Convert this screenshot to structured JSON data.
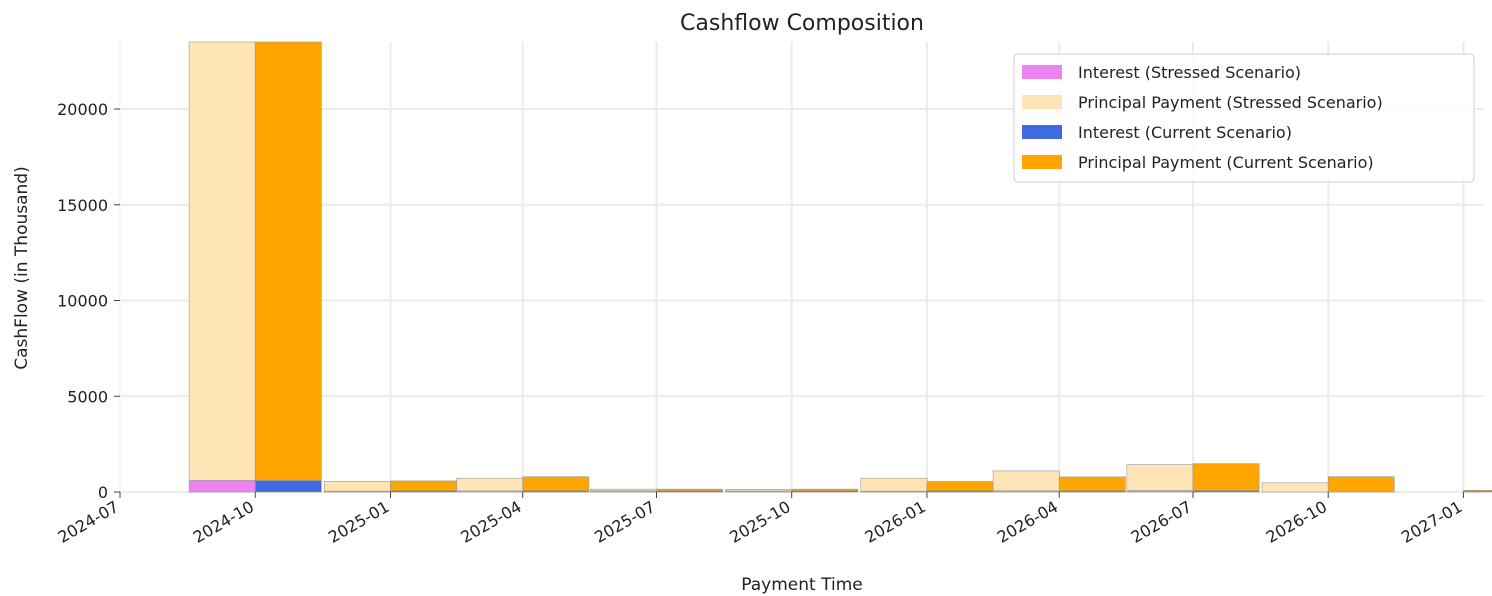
{
  "chart_data": {
    "type": "bar",
    "title": "Cashflow Composition",
    "xlabel": "Payment Time",
    "ylabel": "CashFlow (in Thousand)",
    "ylim": [
      0,
      23500
    ],
    "yticks": [
      0,
      5000,
      10000,
      15000,
      20000
    ],
    "xlim": [
      "2024-07-01",
      "2027-01-15"
    ],
    "xticks": [
      "2024-07",
      "2024-10",
      "2025-01",
      "2025-04",
      "2025-07",
      "2025-10",
      "2026-01",
      "2026-04",
      "2026-07",
      "2026-10",
      "2027-01"
    ],
    "grid": true,
    "legend_position": "top-right",
    "colors": {
      "interest_stressed": "#ee82ee",
      "principal_stressed": "#ffe4b5",
      "interest_current": "#4169e1",
      "principal_current": "#ffa500"
    },
    "periods": [
      "2024-10",
      "2025-01",
      "2025-04",
      "2025-07",
      "2025-10",
      "2026-01",
      "2026-04",
      "2026-07",
      "2026-10",
      "2027-01"
    ],
    "series": [
      {
        "name": "Interest (Stressed Scenario)",
        "scenario": "stressed",
        "component": "interest",
        "values": [
          600,
          40,
          50,
          60,
          50,
          40,
          60,
          70,
          0,
          0
        ]
      },
      {
        "name": "Principal Payment (Stressed Scenario)",
        "scenario": "stressed",
        "component": "principal",
        "values": [
          22900,
          520,
          670,
          90,
          90,
          680,
          1040,
          1360,
          480,
          0
        ]
      },
      {
        "name": "Interest (Current Scenario)",
        "scenario": "current",
        "component": "interest",
        "values": [
          600,
          60,
          60,
          60,
          60,
          60,
          60,
          70,
          0,
          40
        ]
      },
      {
        "name": "Principal Payment (Current Scenario)",
        "scenario": "current",
        "component": "principal",
        "values": [
          22900,
          520,
          740,
          90,
          90,
          490,
          730,
          1410,
          800,
          50
        ]
      }
    ]
  }
}
